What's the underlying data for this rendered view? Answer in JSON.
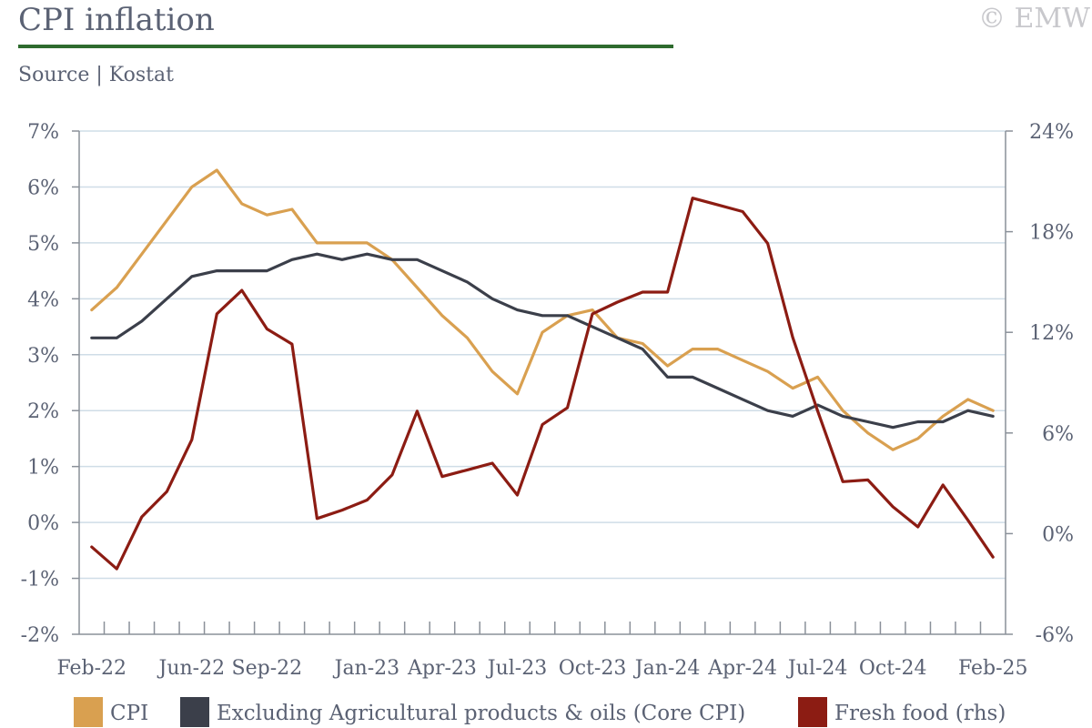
{
  "header": {
    "title": "CPI inflation",
    "source": "Source | Kostat",
    "watermark": "© EMW"
  },
  "colors": {
    "title": "#5b6274",
    "accent_rule": "#2e6b2e",
    "watermark": "#c8c8cc",
    "grid": "#cfdde7",
    "axis": "#8a9099",
    "cpi": "#d9a050",
    "core": "#3b3f4a",
    "fresh": "#8c1c13"
  },
  "chart_data": {
    "type": "line",
    "x": [
      "Feb-22",
      "Mar-22",
      "Apr-22",
      "May-22",
      "Jun-22",
      "Jul-22",
      "Aug-22",
      "Sep-22",
      "Oct-22",
      "Nov-22",
      "Dec-22",
      "Jan-23",
      "Feb-23",
      "Mar-23",
      "Apr-23",
      "May-23",
      "Jun-23",
      "Jul-23",
      "Aug-23",
      "Sep-23",
      "Oct-23",
      "Nov-23",
      "Dec-23",
      "Jan-24",
      "Feb-24",
      "Mar-24",
      "Apr-24",
      "May-24",
      "Jun-24",
      "Jul-24",
      "Aug-24",
      "Sep-24",
      "Oct-24",
      "Nov-24",
      "Dec-24",
      "Jan-25",
      "Feb-25"
    ],
    "x_tick_labels": [
      "Feb-22",
      "Jun-22",
      "Sep-22",
      "Jan-23",
      "Apr-23",
      "Jul-23",
      "Oct-23",
      "Jan-24",
      "Apr-24",
      "Jul-24",
      "Oct-24",
      "Feb-25"
    ],
    "y_left": {
      "lim": [
        -2,
        7
      ],
      "ticks": [
        -2,
        -1,
        0,
        1,
        2,
        3,
        4,
        5,
        6,
        7
      ],
      "tick_labels": [
        "-2%",
        "-1%",
        "0%",
        "1%",
        "2%",
        "3%",
        "4%",
        "5%",
        "6%",
        "7%"
      ]
    },
    "y_right": {
      "lim": [
        -6,
        24
      ],
      "ticks": [
        -6,
        0,
        6,
        12,
        18,
        24
      ],
      "tick_labels": [
        "-6%",
        "0%",
        "6%",
        "12%",
        "18%",
        "24%"
      ]
    },
    "grid": true,
    "legend_position": "bottom",
    "series": [
      {
        "name": "CPI",
        "axis": "left",
        "color": "#d9a050",
        "values": [
          3.8,
          4.2,
          4.8,
          5.4,
          6.0,
          6.3,
          5.7,
          5.5,
          5.6,
          5.0,
          5.0,
          5.0,
          4.7,
          4.2,
          3.7,
          3.3,
          2.7,
          2.3,
          3.4,
          3.7,
          3.8,
          3.3,
          3.2,
          2.8,
          3.1,
          3.1,
          2.9,
          2.7,
          2.4,
          2.6,
          2.0,
          1.6,
          1.3,
          1.5,
          1.9,
          2.2,
          2.0
        ]
      },
      {
        "name": "Excluding Agricultural products & oils (Core CPI)",
        "axis": "left",
        "color": "#3b3f4a",
        "values": [
          3.3,
          3.3,
          3.6,
          4.0,
          4.4,
          4.5,
          4.5,
          4.5,
          4.7,
          4.8,
          4.7,
          4.8,
          4.7,
          4.7,
          4.5,
          4.3,
          4.0,
          3.8,
          3.7,
          3.7,
          3.5,
          3.3,
          3.1,
          2.6,
          2.6,
          2.4,
          2.2,
          2.0,
          1.9,
          2.1,
          1.9,
          1.8,
          1.7,
          1.8,
          1.8,
          2.0,
          1.9
        ]
      },
      {
        "name": "Fresh food (rhs)",
        "axis": "right",
        "color": "#8c1c13",
        "values": [
          -0.8,
          -2.1,
          1.0,
          2.5,
          5.6,
          13.1,
          14.5,
          12.2,
          11.3,
          0.9,
          1.4,
          2.0,
          3.5,
          7.3,
          3.4,
          3.8,
          4.2,
          2.3,
          6.5,
          7.5,
          13.1,
          13.8,
          14.4,
          14.4,
          20.0,
          19.6,
          19.2,
          17.3,
          11.7,
          7.3,
          3.1,
          3.2,
          1.6,
          0.4,
          2.9,
          0.8,
          -1.4
        ]
      }
    ]
  }
}
